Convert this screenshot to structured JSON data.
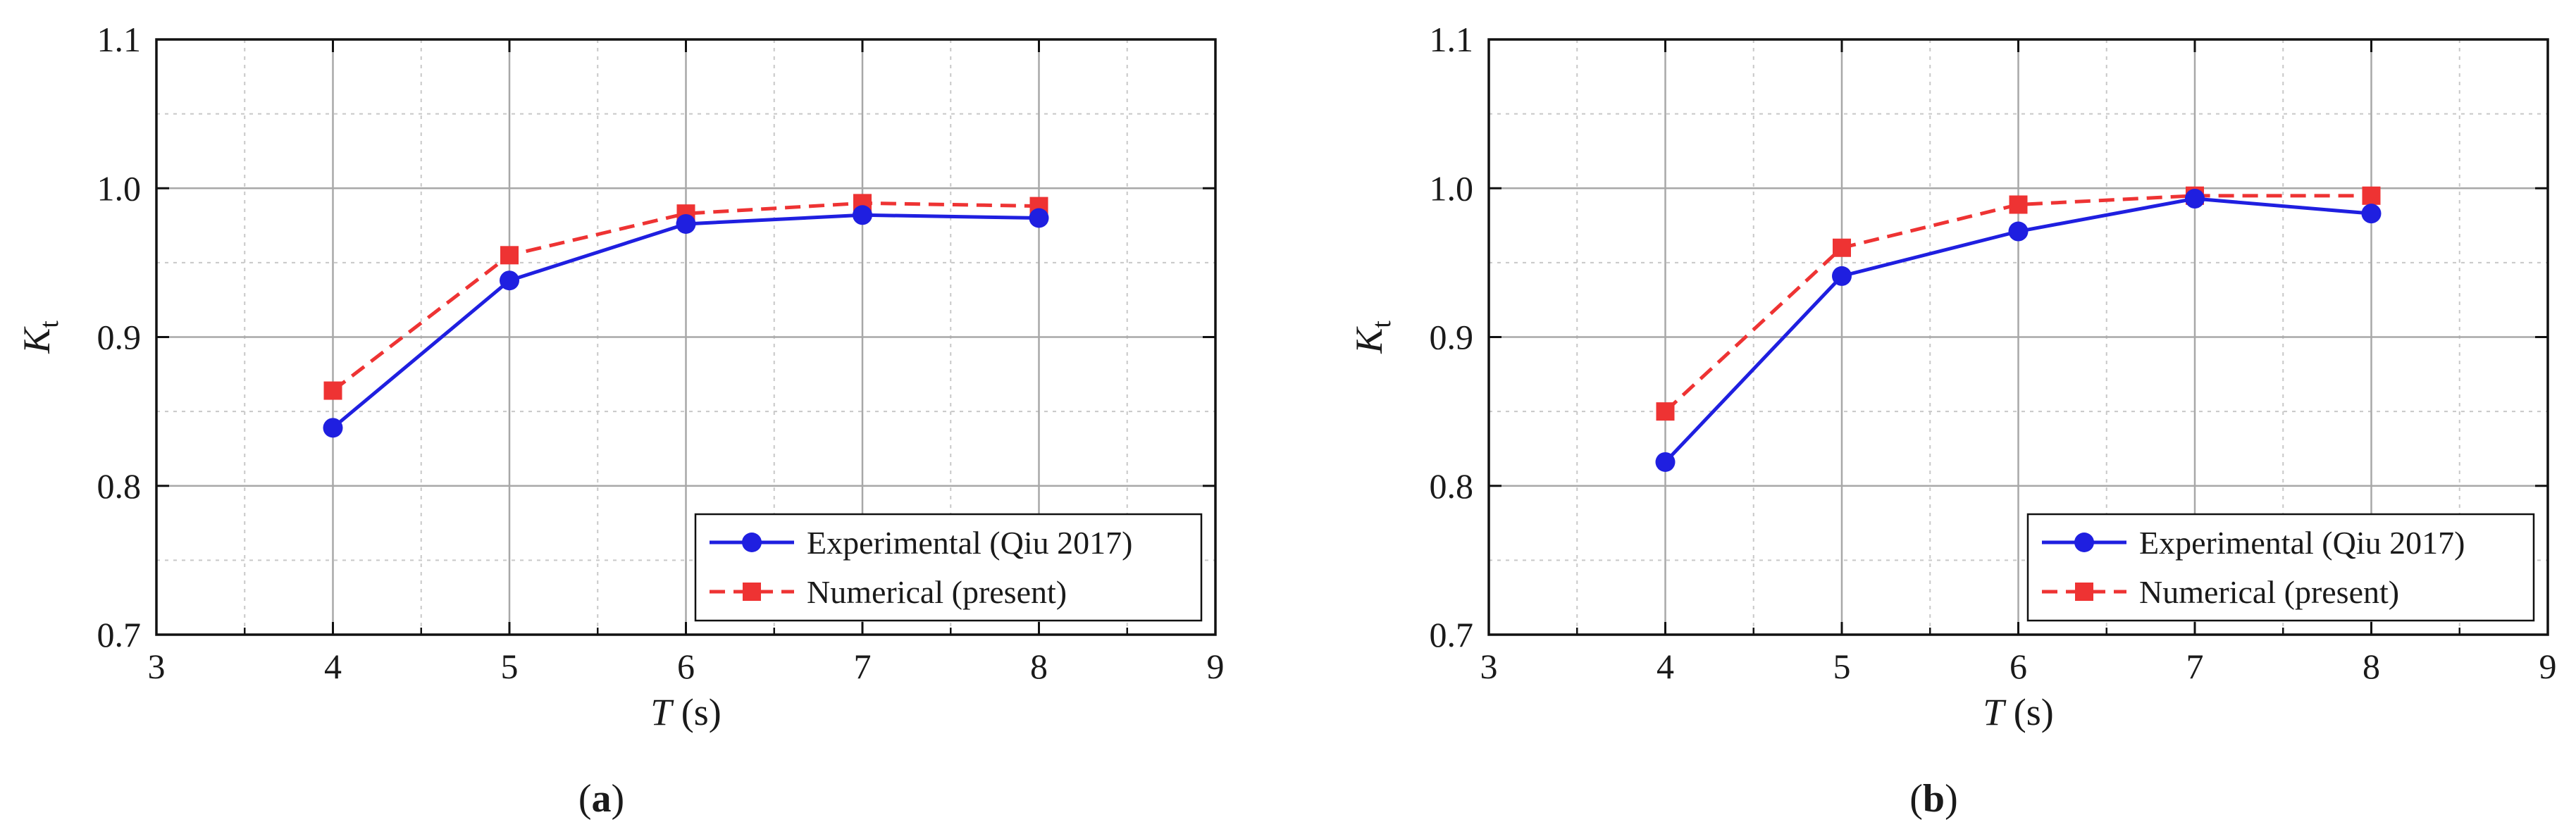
{
  "chart_data": [
    {
      "type": "line",
      "panel_label": "a",
      "xlabel": {
        "var": "T",
        "unit": " (s)"
      },
      "ylabel": {
        "var": "K",
        "sub": "t"
      },
      "xlim": [
        3,
        9
      ],
      "ylim": [
        0.7,
        1.1
      ],
      "x_ticks": [
        3,
        4,
        5,
        6,
        7,
        8,
        9
      ],
      "y_ticks": [
        "0.7",
        "0.8",
        "0.9",
        "1.0",
        "1.1"
      ],
      "grid": true,
      "legend_position": "bottom-right",
      "x": [
        4,
        5,
        6,
        7,
        8
      ],
      "series": [
        {
          "name": "Experimental (Qiu 2017)",
          "values": [
            0.839,
            0.938,
            0.976,
            0.982,
            0.98
          ],
          "color": "#1f1fe0",
          "marker": "circle",
          "line": "solid"
        },
        {
          "name": "Numerical (present)",
          "values": [
            0.864,
            0.955,
            0.983,
            0.99,
            0.988
          ],
          "color": "#ee3333",
          "marker": "square",
          "line": "dashed"
        }
      ]
    },
    {
      "type": "line",
      "panel_label": "b",
      "xlabel": {
        "var": "T",
        "unit": " (s)"
      },
      "ylabel": {
        "var": "K",
        "sub": "t"
      },
      "xlim": [
        3,
        9
      ],
      "ylim": [
        0.7,
        1.1
      ],
      "x_ticks": [
        3,
        4,
        5,
        6,
        7,
        8,
        9
      ],
      "y_ticks": [
        "0.7",
        "0.8",
        "0.9",
        "1.0",
        "1.1"
      ],
      "grid": true,
      "legend_position": "bottom-right",
      "x": [
        4,
        5,
        6,
        7,
        8
      ],
      "series": [
        {
          "name": "Experimental (Qiu 2017)",
          "values": [
            0.816,
            0.941,
            0.971,
            0.993,
            0.983
          ],
          "color": "#1f1fe0",
          "marker": "circle",
          "line": "solid"
        },
        {
          "name": "Numerical (present)",
          "values": [
            0.85,
            0.96,
            0.989,
            0.995,
            0.995
          ],
          "color": "#ee3333",
          "marker": "square",
          "line": "dashed"
        }
      ]
    }
  ]
}
